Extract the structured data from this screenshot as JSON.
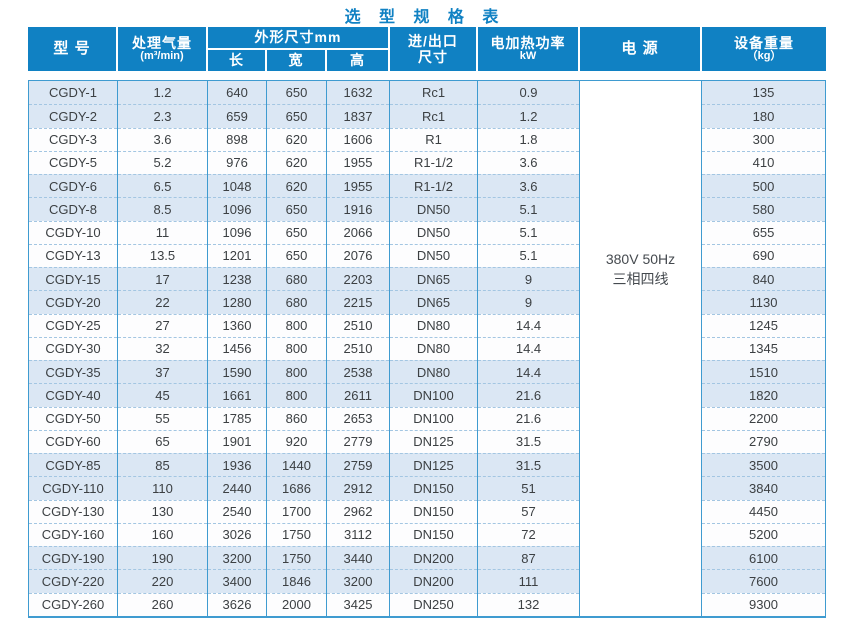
{
  "title": "选 型 规 格 表",
  "table": {
    "header": {
      "model": "型 号",
      "air_volume_line1": "处理气量",
      "air_volume_line2": "(m³/min)",
      "dimensions": "外形尺寸mm",
      "length": "长",
      "width": "宽",
      "height": "高",
      "port_line1": "进/出口",
      "port_line2": "尺寸",
      "power_line1": "电加热功率",
      "power_line2": "kW",
      "supply": "电 源",
      "weight_line1": "设备重量",
      "weight_line2": "（kg）"
    },
    "power_supply": [
      "380V 50Hz",
      "三相四线"
    ],
    "columns": [
      "model",
      "air_volume_m3_min",
      "length_mm",
      "width_mm",
      "height_mm",
      "inlet_outlet_size",
      "heating_power_kw",
      "weight_kg"
    ],
    "rows": [
      [
        "CGDY-1",
        "1.2",
        "640",
        "650",
        "1632",
        "Rc1",
        "0.9",
        "135"
      ],
      [
        "CGDY-2",
        "2.3",
        "659",
        "650",
        "1837",
        "Rc1",
        "1.2",
        "180"
      ],
      [
        "CGDY-3",
        "3.6",
        "898",
        "620",
        "1606",
        "R1",
        "1.8",
        "300"
      ],
      [
        "CGDY-5",
        "5.2",
        "976",
        "620",
        "1955",
        "R1-1/2",
        "3.6",
        "410"
      ],
      [
        "CGDY-6",
        "6.5",
        "1048",
        "620",
        "1955",
        "R1-1/2",
        "3.6",
        "500"
      ],
      [
        "CGDY-8",
        "8.5",
        "1096",
        "650",
        "1916",
        "DN50",
        "5.1",
        "580"
      ],
      [
        "CGDY-10",
        "11",
        "1096",
        "650",
        "2066",
        "DN50",
        "5.1",
        "655"
      ],
      [
        "CGDY-13",
        "13.5",
        "1201",
        "650",
        "2076",
        "DN50",
        "5.1",
        "690"
      ],
      [
        "CGDY-15",
        "17",
        "1238",
        "680",
        "2203",
        "DN65",
        "9",
        "840"
      ],
      [
        "CGDY-20",
        "22",
        "1280",
        "680",
        "2215",
        "DN65",
        "9",
        "1130"
      ],
      [
        "CGDY-25",
        "27",
        "1360",
        "800",
        "2510",
        "DN80",
        "14.4",
        "1245"
      ],
      [
        "CGDY-30",
        "32",
        "1456",
        "800",
        "2510",
        "DN80",
        "14.4",
        "1345"
      ],
      [
        "CGDY-35",
        "37",
        "1590",
        "800",
        "2538",
        "DN80",
        "14.4",
        "1510"
      ],
      [
        "CGDY-40",
        "45",
        "1661",
        "800",
        "2611",
        "DN100",
        "21.6",
        "1820"
      ],
      [
        "CGDY-50",
        "55",
        "1785",
        "860",
        "2653",
        "DN100",
        "21.6",
        "2200"
      ],
      [
        "CGDY-60",
        "65",
        "1901",
        "920",
        "2779",
        "DN125",
        "31.5",
        "2790"
      ],
      [
        "CGDY-85",
        "85",
        "1936",
        "1440",
        "2759",
        "DN125",
        "31.5",
        "3500"
      ],
      [
        "CGDY-110",
        "110",
        "2440",
        "1686",
        "2912",
        "DN150",
        "51",
        "3840"
      ],
      [
        "CGDY-130",
        "130",
        "2540",
        "1700",
        "2962",
        "DN150",
        "57",
        "4450"
      ],
      [
        "CGDY-160",
        "160",
        "3026",
        "1750",
        "3112",
        "DN150",
        "72",
        "5200"
      ],
      [
        "CGDY-190",
        "190",
        "3200",
        "1750",
        "3440",
        "DN200",
        "87",
        "6100"
      ],
      [
        "CGDY-220",
        "220",
        "3400",
        "1846",
        "3200",
        "DN200",
        "111",
        "7600"
      ],
      [
        "CGDY-260",
        "260",
        "3626",
        "2000",
        "3425",
        "DN250",
        "132",
        "9300"
      ]
    ]
  },
  "colors": {
    "header_blue": "#1081c3",
    "title_blue": "#1081c3",
    "row_alt_blue": "#dbe7f4",
    "grid_line_blue": "#3f9bd0",
    "dash_blue": "#a3c6e2",
    "body_text": "#3c4043"
  }
}
